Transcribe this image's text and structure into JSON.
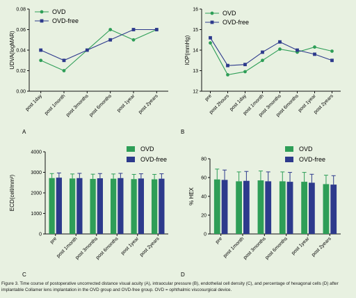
{
  "colors": {
    "ovd": "#2e9e57",
    "ovd_free": "#2d3a8c",
    "axis": "#111111"
  },
  "caption": "Figure 3. Time course of postoperative uncorrected distance visual acuity (A), intraocular pressure (B), endothelial cell density (C), and percentage of hexagonal cells (D) after implantable Collamer lens implantation in the OVD group and OVD-free group. OVD = ophthalmic viscosurgical device.",
  "chart_data": [
    {
      "panel": "A",
      "type": "line",
      "ylabel": "UDVA(logMAR)",
      "categories": [
        "post 1day",
        "post 1month",
        "post 3months",
        "post 6months",
        "post 1year",
        "post 2years"
      ],
      "ylim": [
        0,
        0.08
      ],
      "yticks": [
        "0.00",
        "0.02",
        "0.04",
        "0.06",
        "0.08"
      ],
      "legend": "top-left",
      "grid": false,
      "series": [
        {
          "name": "OVD",
          "values": [
            0.03,
            0.02,
            0.04,
            0.06,
            0.05,
            0.06
          ]
        },
        {
          "name": "OVD-free",
          "values": [
            0.04,
            0.03,
            0.04,
            0.05,
            0.06,
            0.06
          ]
        }
      ]
    },
    {
      "panel": "B",
      "type": "line",
      "ylabel": "IOP(mmHg)",
      "categories": [
        "pre",
        "post 2hours",
        "post 1day",
        "post 1month",
        "post 3months",
        "post 6months",
        "post 1year",
        "post 2years"
      ],
      "ylim": [
        12,
        16
      ],
      "yticks": [
        "12",
        "13",
        "14",
        "15",
        "16"
      ],
      "legend": "top-right",
      "grid": false,
      "series": [
        {
          "name": "OVD",
          "values": [
            14.35,
            12.8,
            12.95,
            13.5,
            14.05,
            13.9,
            14.15,
            13.95
          ]
        },
        {
          "name": "OVD-free",
          "values": [
            14.6,
            13.25,
            13.3,
            13.9,
            14.4,
            14.0,
            13.8,
            13.5
          ]
        }
      ]
    },
    {
      "panel": "C",
      "type": "bar",
      "ylabel": "ECD(cell/mm²)",
      "categories": [
        "pre",
        "post 1month",
        "post 3months",
        "post 6months",
        "post 1year",
        "post 2years"
      ],
      "ylim": [
        0,
        4000
      ],
      "yticks": [
        "0",
        "1000",
        "2000",
        "3000",
        "4000"
      ],
      "legend": "top-right",
      "grid": false,
      "series": [
        {
          "name": "OVD",
          "values": [
            2720,
            2700,
            2680,
            2690,
            2670,
            2660
          ],
          "error": [
            220,
            220,
            230,
            230,
            230,
            240
          ]
        },
        {
          "name": "OVD-free",
          "values": [
            2740,
            2720,
            2710,
            2720,
            2700,
            2690
          ],
          "error": [
            230,
            230,
            230,
            230,
            230,
            240
          ]
        }
      ]
    },
    {
      "panel": "D",
      "type": "bar",
      "ylabel": "% HEX",
      "categories": [
        "pre",
        "post 1month",
        "post 3months",
        "post 6months",
        "post 1year",
        "post 2years"
      ],
      "ylim": [
        0,
        80
      ],
      "yticks": [
        "0",
        "20",
        "40",
        "60",
        "80"
      ],
      "legend": "top-right",
      "grid": false,
      "series": [
        {
          "name": "OVD",
          "values": [
            58,
            56,
            57,
            56,
            55.5,
            53
          ],
          "error": [
            11,
            10,
            10,
            10,
            10,
            9.5
          ]
        },
        {
          "name": "OVD-free",
          "values": [
            57.5,
            56.5,
            56,
            55.5,
            54.5,
            52.5
          ],
          "error": [
            10.5,
            10,
            10,
            10,
            9,
            9.5
          ]
        }
      ]
    }
  ]
}
